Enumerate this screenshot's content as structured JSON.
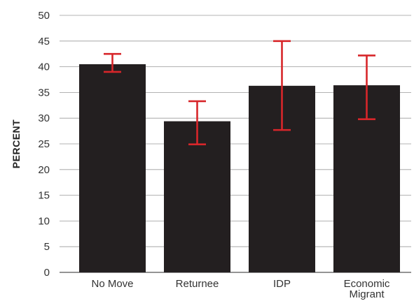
{
  "chart_data": {
    "type": "bar",
    "title": "",
    "xlabel": "",
    "ylabel": "PERCENT",
    "ylim": [
      0,
      50
    ],
    "yticks": [
      "0",
      "5",
      "10",
      "15",
      "20",
      "25",
      "30",
      "35",
      "40",
      "45",
      "50"
    ],
    "grid": "horizontal",
    "categories": [
      [
        "No Move"
      ],
      [
        "Returnee"
      ],
      [
        "IDP"
      ],
      [
        "Economic",
        "Migrant"
      ]
    ],
    "values": [
      40.5,
      29.4,
      36.3,
      36.4
    ],
    "error_low": [
      39.0,
      24.9,
      27.7,
      29.8
    ],
    "error_high": [
      42.5,
      33.3,
      45.0,
      42.2
    ],
    "colors": {
      "bar": "#231f20",
      "error_bar": "#d7262a",
      "grid": "#9a9a9a",
      "axis": "#555555"
    }
  }
}
